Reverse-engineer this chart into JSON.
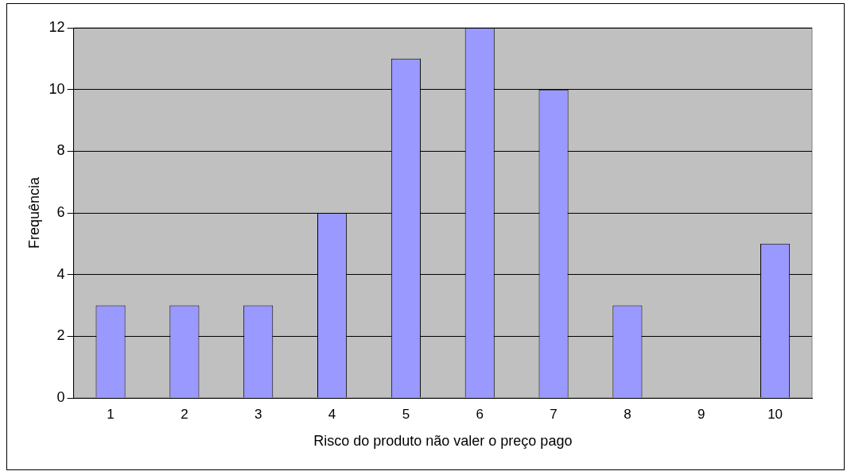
{
  "chart_data": {
    "type": "bar",
    "xlabel": "Risco do produto não valer o preço pago",
    "ylabel": "Frequência",
    "categories": [
      "1",
      "2",
      "3",
      "4",
      "5",
      "6",
      "7",
      "8",
      "9",
      "10"
    ],
    "values": [
      3,
      3,
      3,
      6,
      11,
      12,
      10,
      3,
      0,
      5
    ],
    "color": "#9999ff",
    "ylim": [
      0,
      12
    ],
    "yticks": [
      0,
      2,
      4,
      6,
      8,
      10,
      12
    ],
    "grid": "y",
    "legend": false
  }
}
